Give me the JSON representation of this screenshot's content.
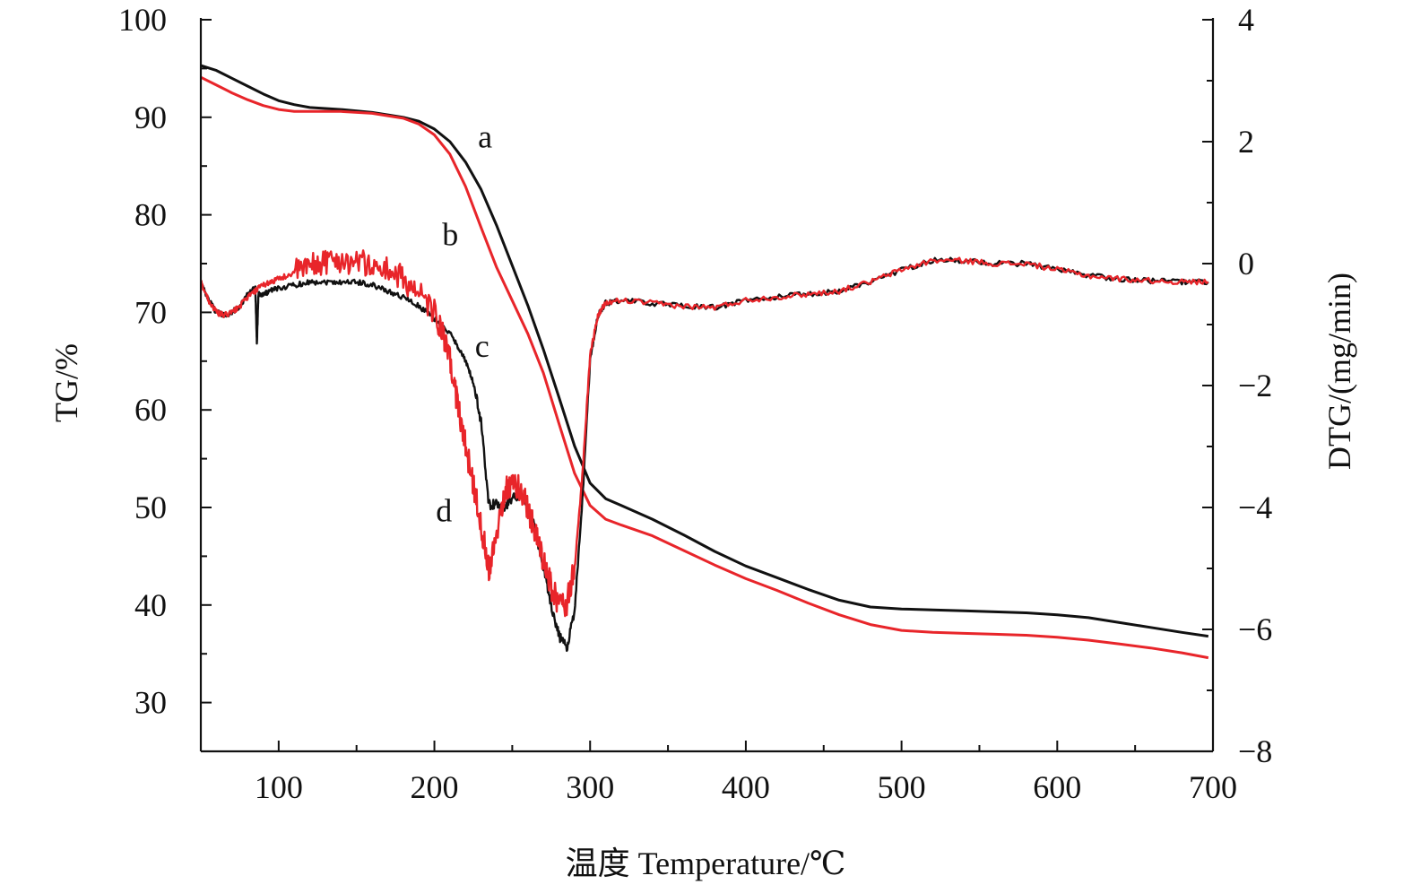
{
  "chart_data": {
    "type": "line",
    "title": "",
    "xlabel": "温度 Temperature/℃",
    "ylabel_left": "TG/%",
    "ylabel_right": "DTG/(mg/min)",
    "xlim": [
      50,
      700
    ],
    "ylim_left": [
      25,
      100
    ],
    "ylim_right": [
      -8,
      4
    ],
    "x_ticks": [
      100,
      200,
      300,
      400,
      500,
      600,
      700
    ],
    "y_left_ticks": [
      30,
      40,
      50,
      60,
      70,
      80,
      90,
      100
    ],
    "y_right_ticks": [
      -8,
      -6,
      -4,
      -2,
      0,
      2,
      4
    ],
    "y_right_tick_labels": [
      "−8",
      "−6",
      "−4",
      "−2",
      "0",
      "2",
      "4"
    ],
    "grid": false,
    "legend": "none",
    "series": [
      {
        "label": "a",
        "axis": "left",
        "color": "#111111",
        "x": [
          50,
          60,
          70,
          80,
          90,
          100,
          110,
          120,
          140,
          160,
          180,
          190,
          200,
          210,
          220,
          230,
          240,
          250,
          260,
          270,
          280,
          290,
          300,
          310,
          320,
          340,
          360,
          380,
          400,
          420,
          440,
          460,
          480,
          500,
          520,
          540,
          560,
          580,
          600,
          620,
          640,
          660,
          680,
          697
        ],
        "y": [
          95.3,
          94.8,
          94.0,
          93.2,
          92.4,
          91.7,
          91.3,
          91.0,
          90.8,
          90.5,
          90.0,
          89.6,
          88.8,
          87.5,
          85.4,
          82.6,
          78.9,
          74.8,
          70.7,
          66.2,
          61.3,
          56.3,
          52.5,
          50.9,
          50.2,
          48.8,
          47.2,
          45.5,
          44.0,
          42.8,
          41.6,
          40.5,
          39.8,
          39.6,
          39.5,
          39.4,
          39.3,
          39.2,
          39.0,
          38.7,
          38.2,
          37.7,
          37.2,
          36.8
        ]
      },
      {
        "label": "b",
        "axis": "left",
        "color": "#e8252a",
        "x": [
          50,
          60,
          70,
          80,
          90,
          100,
          110,
          120,
          140,
          160,
          180,
          190,
          200,
          210,
          220,
          230,
          240,
          250,
          260,
          270,
          280,
          290,
          300,
          310,
          320,
          340,
          360,
          380,
          400,
          420,
          440,
          460,
          480,
          500,
          520,
          540,
          560,
          580,
          600,
          620,
          640,
          660,
          680,
          697
        ],
        "y": [
          94.1,
          93.3,
          92.5,
          91.8,
          91.2,
          90.8,
          90.6,
          90.6,
          90.6,
          90.4,
          89.9,
          89.3,
          88.2,
          86.2,
          82.9,
          78.7,
          74.6,
          71.2,
          67.8,
          63.8,
          58.6,
          53.5,
          50.2,
          48.8,
          48.2,
          47.1,
          45.6,
          44.1,
          42.7,
          41.5,
          40.2,
          39.0,
          38.0,
          37.4,
          37.2,
          37.1,
          37.0,
          36.9,
          36.7,
          36.4,
          36.0,
          35.6,
          35.1,
          34.6
        ]
      },
      {
        "label": "c",
        "axis": "right",
        "color": "#111111",
        "x": [
          50,
          55,
          60,
          65,
          70,
          75,
          80,
          85,
          86,
          87,
          90,
          95,
          100,
          110,
          120,
          130,
          140,
          150,
          160,
          170,
          180,
          190,
          200,
          210,
          215,
          220,
          225,
          230,
          235,
          240,
          245,
          250,
          255,
          260,
          265,
          270,
          275,
          280,
          285,
          290,
          295,
          300,
          305,
          310,
          320,
          340,
          360,
          380,
          400,
          420,
          440,
          460,
          480,
          500,
          520,
          540,
          560,
          580,
          600,
          620,
          640,
          660,
          680,
          697
        ],
        "y": [
          -0.3,
          -0.6,
          -0.8,
          -0.85,
          -0.8,
          -0.7,
          -0.5,
          -0.4,
          -1.3,
          -0.5,
          -0.5,
          -0.45,
          -0.4,
          -0.35,
          -0.3,
          -0.3,
          -0.3,
          -0.3,
          -0.35,
          -0.45,
          -0.55,
          -0.7,
          -0.9,
          -1.15,
          -1.35,
          -1.6,
          -1.95,
          -2.6,
          -3.95,
          -3.95,
          -4.0,
          -3.85,
          -3.8,
          -3.95,
          -4.4,
          -5.0,
          -5.6,
          -6.1,
          -6.3,
          -5.7,
          -3.9,
          -1.6,
          -0.85,
          -0.65,
          -0.6,
          -0.65,
          -0.7,
          -0.72,
          -0.6,
          -0.55,
          -0.5,
          -0.45,
          -0.3,
          -0.1,
          0.05,
          0.05,
          0.0,
          0.0,
          -0.1,
          -0.2,
          -0.25,
          -0.28,
          -0.3,
          -0.3
        ]
      },
      {
        "label": "d",
        "axis": "right",
        "color": "#e8252a",
        "x": [
          50,
          55,
          60,
          65,
          70,
          75,
          80,
          85,
          90,
          95,
          100,
          110,
          120,
          130,
          140,
          150,
          160,
          170,
          180,
          190,
          200,
          205,
          210,
          215,
          220,
          225,
          230,
          235,
          240,
          245,
          250,
          255,
          260,
          265,
          270,
          275,
          280,
          285,
          290,
          295,
          300,
          305,
          310,
          320,
          340,
          360,
          380,
          400,
          420,
          440,
          460,
          480,
          500,
          520,
          540,
          560,
          580,
          600,
          620,
          640,
          660,
          680,
          697
        ],
        "y": [
          -0.3,
          -0.6,
          -0.8,
          -0.85,
          -0.8,
          -0.7,
          -0.55,
          -0.45,
          -0.35,
          -0.3,
          -0.25,
          -0.15,
          -0.05,
          0.05,
          0.05,
          0.05,
          -0.05,
          -0.1,
          -0.25,
          -0.5,
          -0.8,
          -1.15,
          -1.6,
          -2.3,
          -3.0,
          -3.6,
          -4.3,
          -5.0,
          -4.4,
          -3.75,
          -3.6,
          -3.7,
          -4.0,
          -4.4,
          -4.9,
          -5.3,
          -5.6,
          -5.55,
          -5.0,
          -3.5,
          -1.5,
          -0.85,
          -0.65,
          -0.6,
          -0.65,
          -0.7,
          -0.72,
          -0.6,
          -0.55,
          -0.5,
          -0.45,
          -0.3,
          -0.1,
          0.05,
          0.05,
          0.0,
          0.0,
          -0.1,
          -0.2,
          -0.25,
          -0.28,
          -0.3,
          -0.3
        ]
      }
    ],
    "annotations": [
      {
        "text": "a",
        "x": 228,
        "y": 88,
        "axis": "left"
      },
      {
        "text": "b",
        "x": 205,
        "y": 78,
        "axis": "left"
      },
      {
        "text": "c",
        "x": 226,
        "y": -1.35,
        "axis": "right"
      },
      {
        "text": "d",
        "x": 201,
        "y": -4.05,
        "axis": "right"
      }
    ]
  }
}
